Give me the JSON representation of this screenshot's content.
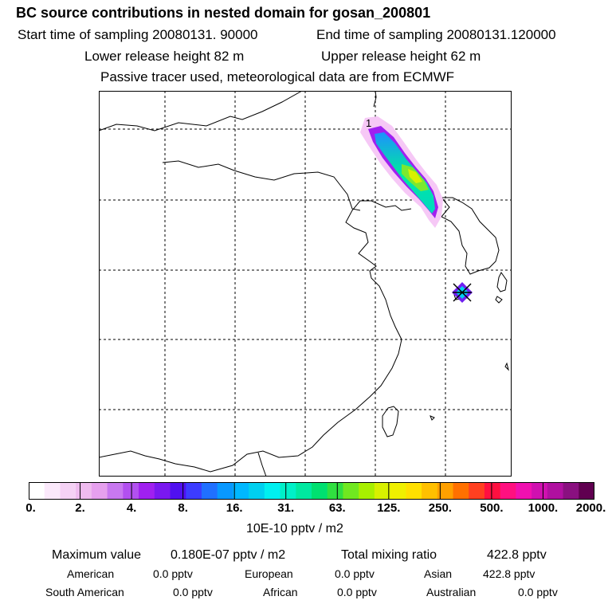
{
  "header": {
    "title": "BC  source contributions in nested domain for gosan_200801",
    "start_time": "Start time of sampling 20080131. 90000",
    "end_time": "End time of sampling 20080131.120000",
    "lower_height": "Lower release height   82 m",
    "upper_height": "Upper release height   62 m",
    "note": "Passive tracer used, meteorological data are from ECMWF"
  },
  "map": {
    "release_marker_label": "1"
  },
  "colorbar": {
    "ticks": [
      "0.",
      "2.",
      "4.",
      "8.",
      "16.",
      "31.",
      "63.",
      "125.",
      "250.",
      "500.",
      "1000.",
      "2000."
    ],
    "unit": "10E-10 pptv / m2",
    "colors": [
      "#ffffff",
      "#fbe9fb",
      "#f5d2f5",
      "#efbbef",
      "#e6a0ee",
      "#c878f0",
      "#b250f0",
      "#a020f0",
      "#7a18f0",
      "#5010f0",
      "#3c3cff",
      "#2070ff",
      "#0898ff",
      "#00b8ff",
      "#00d0f0",
      "#00f0f0",
      "#00f0c8",
      "#00e8a0",
      "#00e070",
      "#30e040",
      "#70e820",
      "#a8f000",
      "#d8f000",
      "#f0f000",
      "#ffe000",
      "#ffc000",
      "#ffa000",
      "#ff7000",
      "#ff4020",
      "#ff1040",
      "#ff1080",
      "#f010b0",
      "#d010b0",
      "#b010a0",
      "#8a1080",
      "#600050"
    ]
  },
  "summary": {
    "max_label": "Maximum value",
    "max_value": "0.180E-07 pptv / m2",
    "total_label": "Total mixing ratio",
    "total_value": "422.8 pptv",
    "regions": [
      {
        "name": "American",
        "value": "0.0 pptv"
      },
      {
        "name": "European",
        "value": "0.0 pptv"
      },
      {
        "name": "Asian",
        "value": "422.8 pptv"
      },
      {
        "name": "South American",
        "value": "0.0 pptv"
      },
      {
        "name": "African",
        "value": "0.0 pptv"
      },
      {
        "name": "Australian",
        "value": "0.0 pptv"
      }
    ]
  }
}
